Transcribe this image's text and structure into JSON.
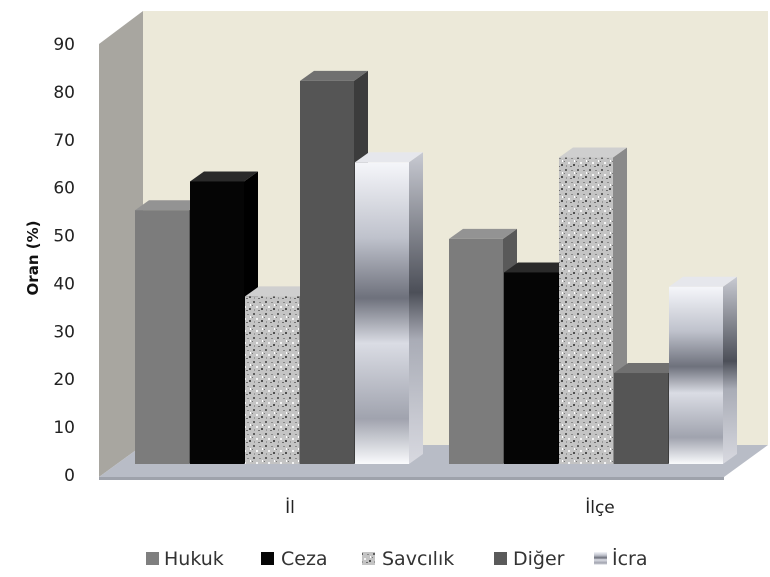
{
  "chart_data": {
    "type": "bar",
    "categories": [
      "İl",
      "İlçe"
    ],
    "series": [
      {
        "name": "Hukuk",
        "values": [
          53,
          47
        ],
        "color": "#7f7f7f"
      },
      {
        "name": "Ceza",
        "values": [
          59,
          40
        ],
        "color": "#050505"
      },
      {
        "name": "Savcılık",
        "values": [
          35,
          64
        ],
        "color": "#b5b5b5"
      },
      {
        "name": "Diğer",
        "values": [
          80,
          19
        ],
        "color": "#5a5a5a"
      },
      {
        "name": "İcra",
        "values": [
          63,
          37
        ],
        "color": "#c9ccd6"
      }
    ],
    "ylabel": "Oran (%)",
    "ylim": [
      0,
      90
    ],
    "yticks": [
      0,
      10,
      20,
      30,
      40,
      50,
      60,
      70,
      80,
      90
    ],
    "legend_position": "bottom",
    "style": "3d-clustered-column",
    "wall_color": "#ece9d9"
  }
}
